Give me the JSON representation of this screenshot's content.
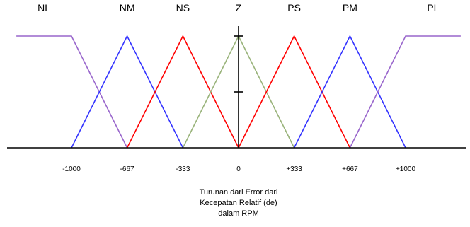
{
  "chart_data": {
    "type": "line",
    "xlabel": [
      "Turunan dari Error dari",
      "Kecepatan Relatif (de)",
      "dalam RPM"
    ],
    "ylim": [
      0,
      1
    ],
    "x_ticks": [
      {
        "value": -1000,
        "label": "-1000"
      },
      {
        "value": -667,
        "label": "-667"
      },
      {
        "value": -333,
        "label": "-333"
      },
      {
        "value": 0,
        "label": "0"
      },
      {
        "value": 333,
        "label": "+333"
      },
      {
        "value": 667,
        "label": "+667"
      },
      {
        "value": 1000,
        "label": "+1000"
      }
    ],
    "y_ticks": [
      0.5,
      1
    ],
    "series": [
      {
        "name": "NL",
        "color": "#9966cc",
        "points": [
          [
            -1330,
            1
          ],
          [
            -1000,
            1
          ],
          [
            -667,
            0
          ]
        ]
      },
      {
        "name": "NM",
        "color": "#3333ff",
        "points": [
          [
            -1000,
            0
          ],
          [
            -667,
            1
          ],
          [
            -333,
            0
          ]
        ]
      },
      {
        "name": "NS",
        "color": "#ff0000",
        "points": [
          [
            -667,
            0
          ],
          [
            -333,
            1
          ],
          [
            0,
            0
          ]
        ]
      },
      {
        "name": "Z",
        "color": "#99b37a",
        "points": [
          [
            -333,
            0
          ],
          [
            0,
            1
          ],
          [
            333,
            0
          ]
        ]
      },
      {
        "name": "PS",
        "color": "#ff0000",
        "points": [
          [
            0,
            0
          ],
          [
            333,
            1
          ],
          [
            667,
            0
          ]
        ]
      },
      {
        "name": "PM",
        "color": "#3333ff",
        "points": [
          [
            333,
            0
          ],
          [
            667,
            1
          ],
          [
            1000,
            0
          ]
        ]
      },
      {
        "name": "PL",
        "color": "#9966cc",
        "points": [
          [
            667,
            0
          ],
          [
            1000,
            1
          ],
          [
            1330,
            1
          ]
        ]
      }
    ]
  }
}
